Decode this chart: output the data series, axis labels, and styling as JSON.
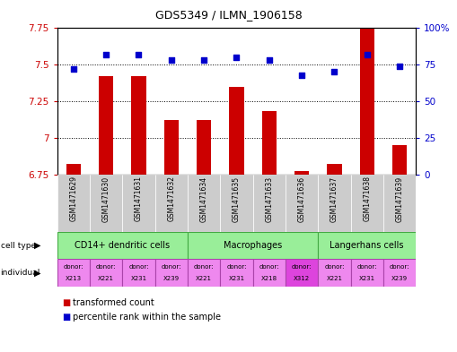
{
  "title": "GDS5349 / ILMN_1906158",
  "samples": [
    "GSM1471629",
    "GSM1471630",
    "GSM1471631",
    "GSM1471632",
    "GSM1471634",
    "GSM1471635",
    "GSM1471633",
    "GSM1471636",
    "GSM1471637",
    "GSM1471638",
    "GSM1471639"
  ],
  "transformed_count": [
    6.82,
    7.42,
    7.42,
    7.12,
    7.12,
    7.35,
    7.18,
    6.77,
    6.82,
    7.77,
    6.95
  ],
  "percentile_rank": [
    72,
    82,
    82,
    78,
    78,
    80,
    78,
    68,
    70,
    82,
    74
  ],
  "ylim_left": [
    6.75,
    7.75
  ],
  "ylim_right": [
    0,
    100
  ],
  "yticks_left": [
    6.75,
    7.0,
    7.25,
    7.5,
    7.75
  ],
  "ytick_labels_left": [
    "6.75",
    "7",
    "7.25",
    "7.5",
    "7.75"
  ],
  "yticks_right": [
    0,
    25,
    50,
    75,
    100
  ],
  "ytick_labels_right": [
    "0",
    "25",
    "50",
    "75",
    "100%"
  ],
  "bar_color": "#cc0000",
  "dot_color": "#0000cc",
  "bar_label": "transformed count",
  "dot_label": "percentile rank within the sample",
  "cell_type_label": "cell type",
  "individual_label": "individual",
  "bg_color": "#ffffff",
  "plot_bg": "#ffffff",
  "ylabel_left_color": "#cc0000",
  "ylabel_right_color": "#0000cc",
  "bar_base": 6.75,
  "ct_groups": [
    {
      "label": "CD14+ dendritic cells",
      "cols": [
        0,
        1,
        2,
        3
      ],
      "color": "#99ee99"
    },
    {
      "label": "Macrophages",
      "cols": [
        4,
        5,
        6,
        7
      ],
      "color": "#99ee99"
    },
    {
      "label": "Langerhans cells",
      "cols": [
        8,
        9,
        10
      ],
      "color": "#99ee99"
    }
  ],
  "ind_donors": [
    "X213",
    "X221",
    "X231",
    "X239",
    "X221",
    "X231",
    "X218",
    "X312",
    "X221",
    "X231",
    "X239"
  ],
  "ind_colors": [
    "#ee88ee",
    "#ee88ee",
    "#ee88ee",
    "#ee88ee",
    "#ee88ee",
    "#ee88ee",
    "#ee88ee",
    "#dd44dd",
    "#ee88ee",
    "#ee88ee",
    "#ee88ee"
  ],
  "sample_label_bg": "#cccccc",
  "ct_border_color": "#44aa44",
  "ind_border_color": "#aa44aa"
}
